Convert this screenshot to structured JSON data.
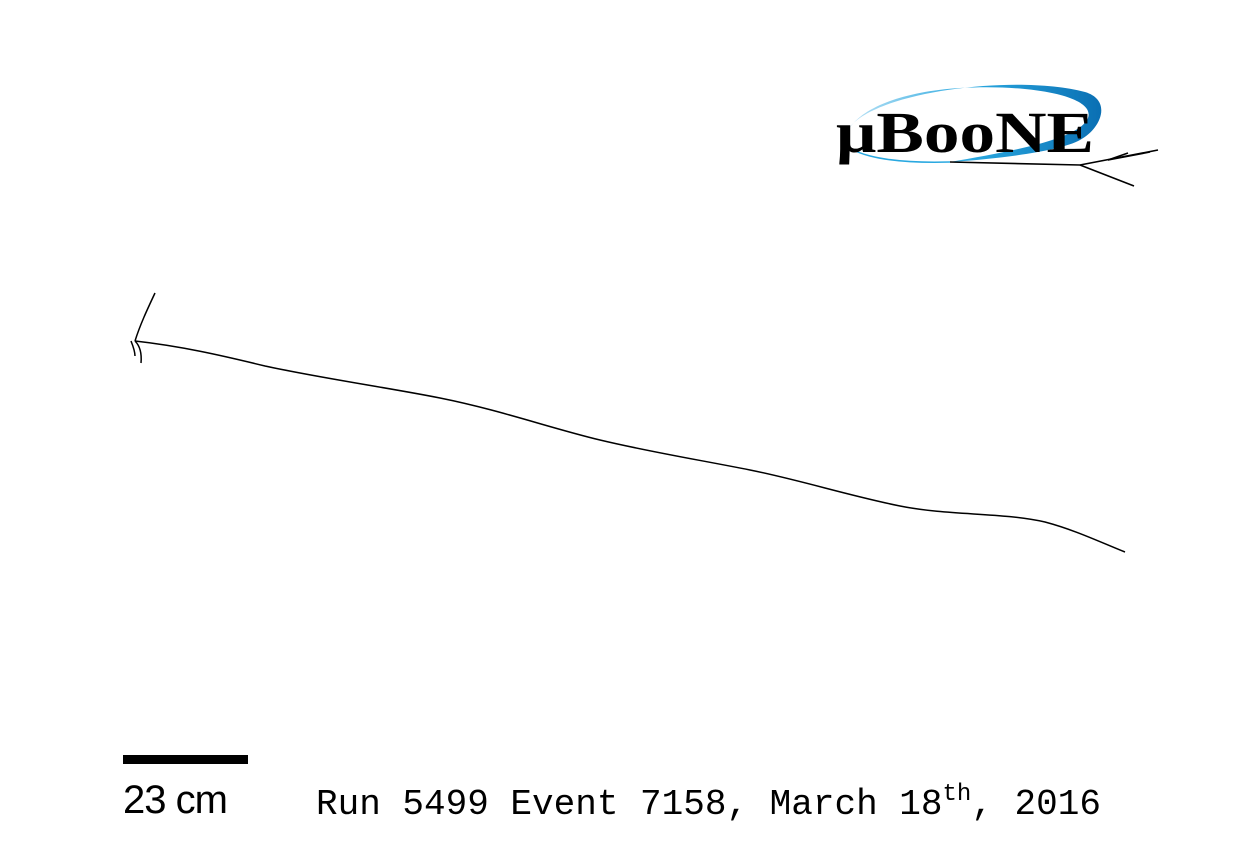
{
  "logo": {
    "text": "μBooNE",
    "colors": {
      "ring_light": "#29a8e0",
      "ring_dark": "#0a7bc1",
      "text": "#000000"
    }
  },
  "scale_bar": {
    "label": "23 cm",
    "length_cm": 23
  },
  "event_info": {
    "prefix": "Run 5499 Event 7158, March 18",
    "ordinal_suffix": "th",
    "suffix": ", 2016"
  },
  "colors": {
    "background": "#ffffff",
    "track": "#000000"
  }
}
